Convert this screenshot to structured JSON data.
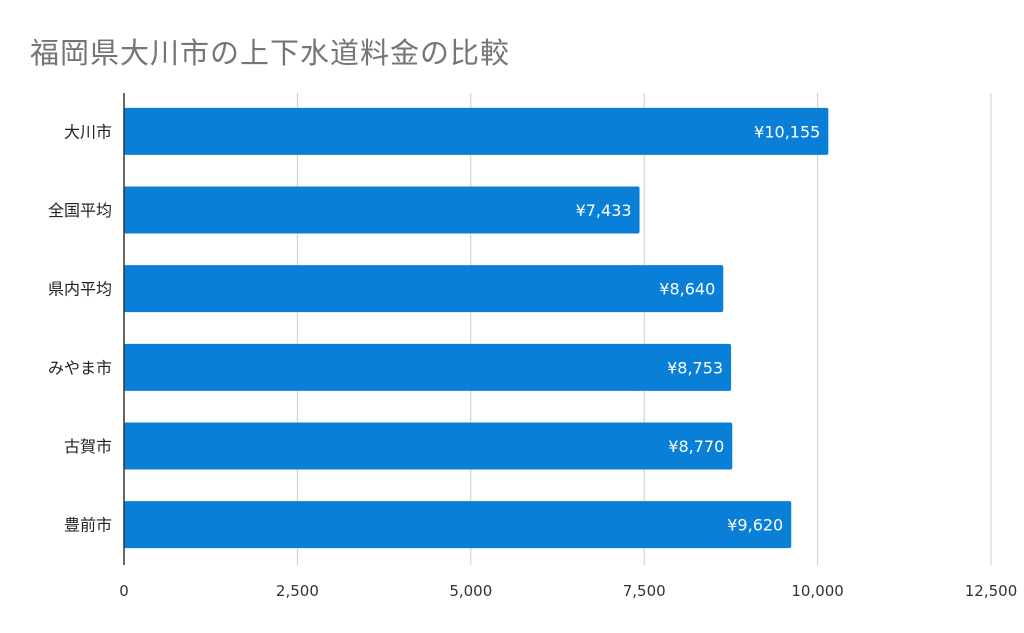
{
  "chart_data": {
    "type": "bar",
    "orientation": "horizontal",
    "title": "福岡県大川市の上下水道料金の比較",
    "categories": [
      "大川市",
      "全国平均",
      "県内平均",
      "みやま市",
      "古賀市",
      "豊前市"
    ],
    "values": [
      10155,
      7433,
      8640,
      8753,
      8770,
      9620
    ],
    "data_labels": [
      "¥10,155",
      "¥7,433",
      "¥8,640",
      "¥8,753",
      "¥8,770",
      "¥9,620"
    ],
    "xlim": [
      0,
      12500
    ],
    "x_ticks": [
      0,
      2500,
      5000,
      7500,
      10000,
      12500
    ],
    "x_tick_labels": [
      "0",
      "2,500",
      "5,000",
      "7,500",
      "10,000",
      "12,500"
    ],
    "grid": true,
    "legend": "none",
    "bar_color": "#0a7fd8",
    "title_color": "#757575"
  }
}
